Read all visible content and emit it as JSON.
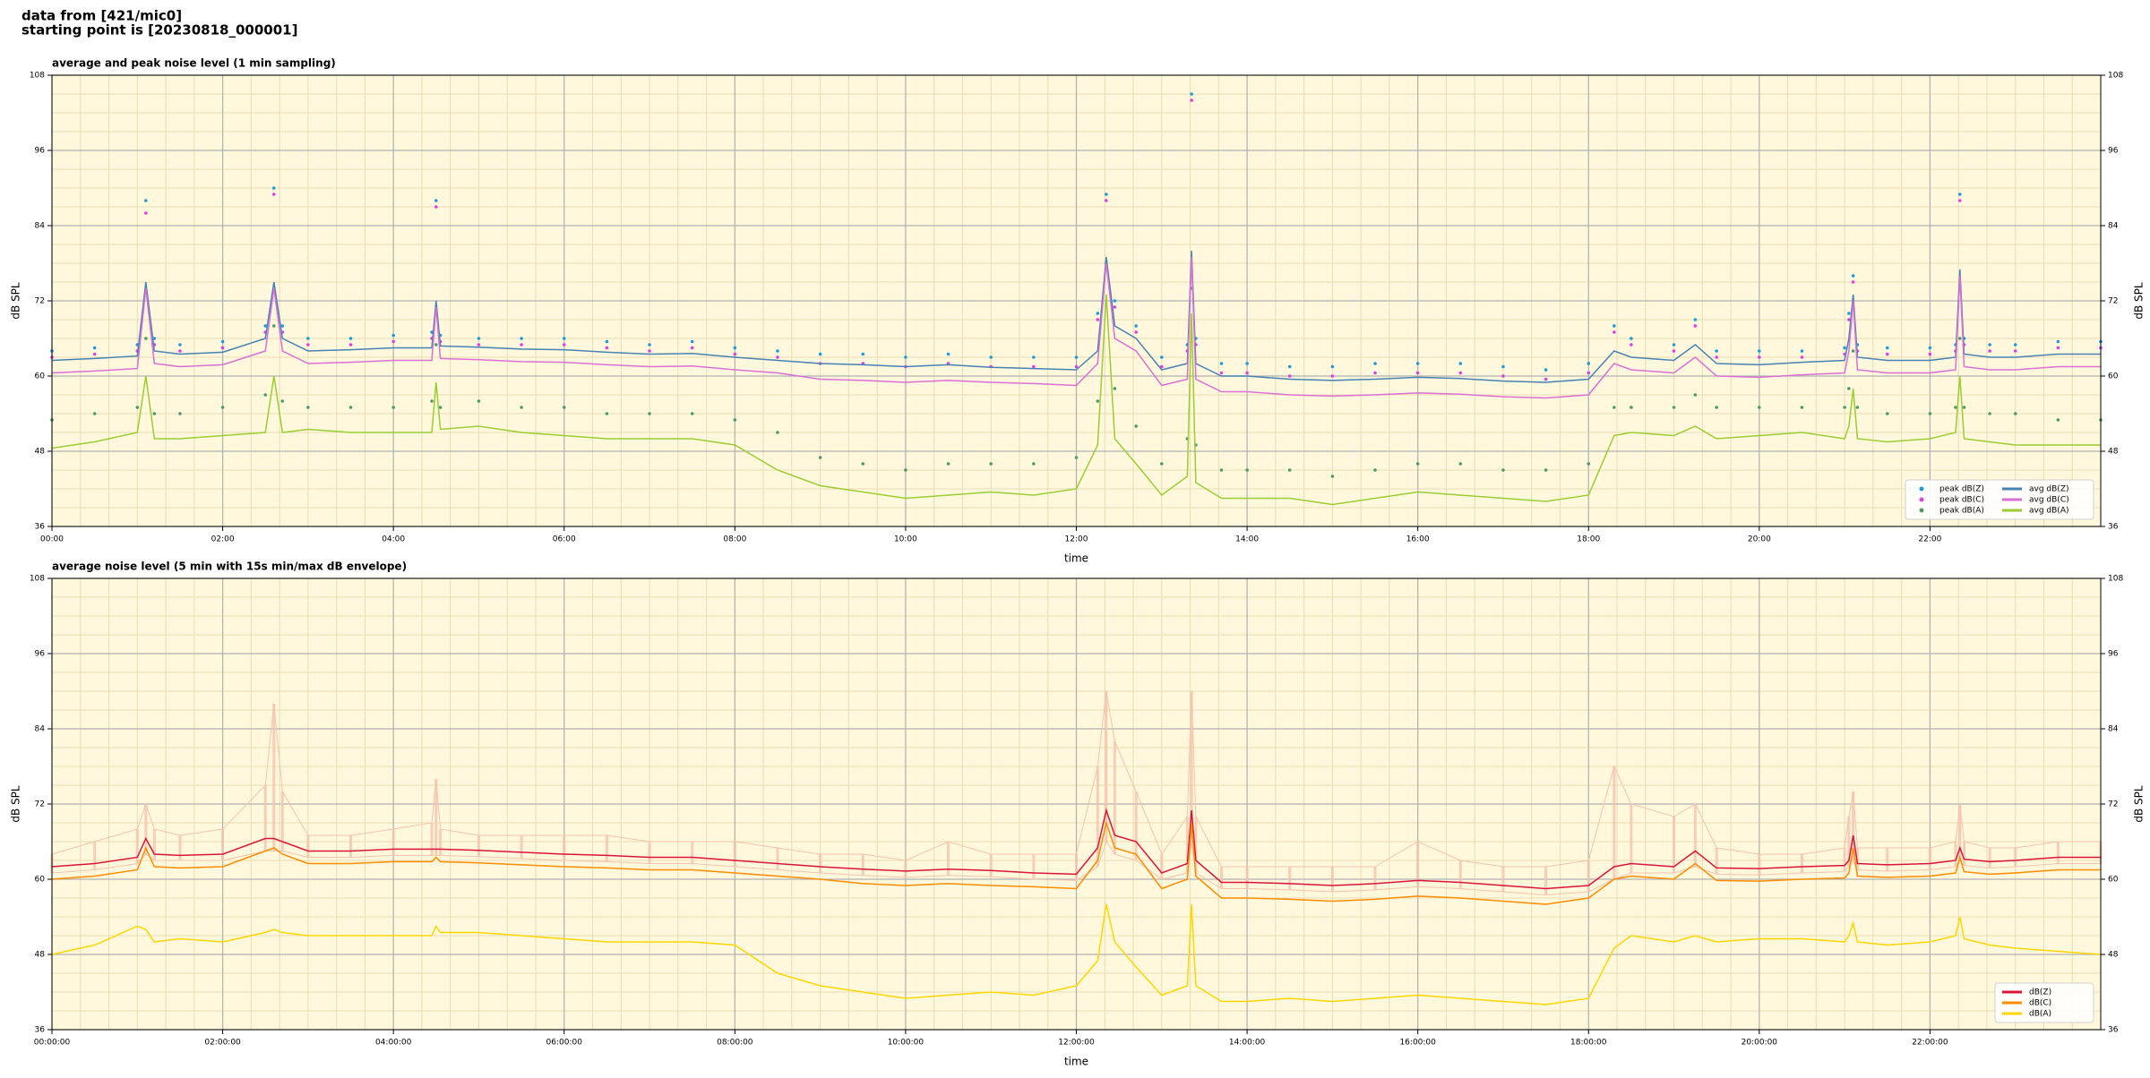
{
  "header": {
    "line1": "data from [421/mic0]",
    "line2": "starting point is [20230818_000001]"
  },
  "chart_data": [
    {
      "type": "line",
      "title": "average and peak noise level (1 min sampling)",
      "xlabel": "time",
      "ylabel": "dB SPL",
      "y2label": "dB SPL",
      "xlim": [
        0,
        24
      ],
      "ylim": [
        36,
        108
      ],
      "y2lim": [
        36,
        108
      ],
      "yticks": [
        36,
        48,
        60,
        72,
        84,
        96,
        108
      ],
      "y2ticks": [
        36,
        48,
        60,
        72,
        84,
        96,
        108
      ],
      "xticks": [
        {
          "value": 0,
          "label": "00:00"
        },
        {
          "value": 2,
          "label": "02:00"
        },
        {
          "value": 4,
          "label": "04:00"
        },
        {
          "value": 6,
          "label": "06:00"
        },
        {
          "value": 8,
          "label": "08:00"
        },
        {
          "value": 10,
          "label": "10:00"
        },
        {
          "value": 12,
          "label": "12:00"
        },
        {
          "value": 14,
          "label": "14:00"
        },
        {
          "value": 16,
          "label": "16:00"
        },
        {
          "value": 18,
          "label": "18:00"
        },
        {
          "value": 20,
          "label": "20:00"
        },
        {
          "value": 22,
          "label": "22:00"
        }
      ],
      "grid": true,
      "minor_grid": true,
      "background": "#fff8dc",
      "legend": "lower right",
      "legend_columns": 2,
      "x": [
        0,
        0.5,
        1,
        1.1,
        1.2,
        1.5,
        2,
        2.5,
        2.6,
        2.7,
        3,
        3.5,
        4,
        4.45,
        4.5,
        4.55,
        5,
        5.5,
        6,
        6.5,
        7,
        7.5,
        8,
        8.5,
        9,
        9.5,
        10,
        10.5,
        11,
        11.5,
        12,
        12.25,
        12.35,
        12.45,
        12.7,
        13,
        13.3,
        13.35,
        13.4,
        13.7,
        14,
        14.5,
        15,
        15.5,
        16,
        16.5,
        17,
        17.5,
        18,
        18.3,
        18.5,
        19,
        19.25,
        19.5,
        20,
        20.5,
        21,
        21.05,
        21.1,
        21.15,
        21.5,
        22,
        22.3,
        22.35,
        22.4,
        22.7,
        23,
        23.5,
        24
      ],
      "series": [
        {
          "name": "peak dB(Z)",
          "kind": "scatter",
          "color": "#1f9bd7",
          "values": [
            64,
            64.5,
            65,
            88,
            66,
            65,
            65.5,
            68,
            90,
            68,
            66,
            66,
            66.5,
            67,
            88,
            66.5,
            66,
            66,
            66,
            65.5,
            65,
            65.5,
            64.5,
            64,
            63.5,
            63.5,
            63,
            63.5,
            63,
            63,
            63,
            70,
            89,
            72,
            68,
            63,
            65,
            105,
            66,
            62,
            62,
            61.5,
            61.5,
            62,
            62,
            62,
            61.5,
            61,
            62,
            68,
            66,
            65,
            69,
            64,
            64,
            64,
            64.5,
            70,
            76,
            65,
            64.5,
            64.5,
            65,
            89,
            66,
            65,
            65,
            65.5,
            65.5
          ]
        },
        {
          "name": "peak dB(C)",
          "kind": "scatter",
          "color": "#e040e0",
          "values": [
            63,
            63.5,
            64,
            86,
            65,
            64,
            64.5,
            67,
            89,
            67,
            65,
            65,
            65.5,
            66,
            87,
            65.5,
            65,
            65,
            65,
            64.5,
            64,
            64.5,
            63.5,
            63,
            62,
            62,
            61.5,
            62,
            61.5,
            61.5,
            61.5,
            69,
            88,
            71,
            67,
            61.5,
            64,
            104,
            65,
            60.5,
            60.5,
            60,
            60,
            60.5,
            60.5,
            60.5,
            60,
            59.5,
            60.5,
            67,
            65,
            64,
            68,
            63,
            63,
            63,
            63.5,
            69,
            75,
            64,
            63.5,
            63.5,
            64,
            88,
            65,
            64,
            64,
            64.5,
            64.5
          ]
        },
        {
          "name": "peak dB(A)",
          "kind": "scatter",
          "color": "#4f9a6a",
          "values": [
            53,
            54,
            55,
            66,
            54,
            54,
            55,
            57,
            68,
            56,
            55,
            55,
            55,
            56,
            65,
            55,
            56,
            55,
            55,
            54,
            54,
            54,
            53,
            51,
            47,
            46,
            45,
            46,
            46,
            46,
            47,
            56,
            78,
            58,
            52,
            46,
            50,
            74,
            49,
            45,
            45,
            45,
            44,
            45,
            46,
            46,
            45,
            45,
            46,
            55,
            55,
            55,
            57,
            55,
            55,
            55,
            55,
            58,
            64,
            55,
            54,
            54,
            55,
            66,
            55,
            54,
            54,
            53,
            53
          ]
        },
        {
          "name": "avg dB(Z)",
          "kind": "line",
          "color": "#4682b4",
          "values": [
            62.5,
            62.8,
            63.2,
            75,
            64,
            63.5,
            63.8,
            66,
            75,
            66,
            64,
            64.2,
            64.5,
            64.5,
            72,
            64.8,
            64.6,
            64.3,
            64.2,
            63.8,
            63.5,
            63.6,
            63,
            62.5,
            62,
            61.8,
            61.5,
            61.8,
            61.4,
            61.2,
            61,
            64,
            79,
            68,
            66,
            61,
            62,
            80,
            62,
            60,
            60,
            59.5,
            59.3,
            59.5,
            59.8,
            59.6,
            59.2,
            59,
            59.5,
            64,
            63,
            62.5,
            65,
            62,
            61.8,
            62.2,
            62.5,
            66,
            73,
            63,
            62.5,
            62.5,
            63,
            77,
            63.5,
            63,
            63,
            63.5,
            63.5
          ]
        },
        {
          "name": "avg dB(C)",
          "kind": "line",
          "color": "#da70d6",
          "values": [
            60.5,
            60.8,
            61.2,
            74,
            62,
            61.5,
            61.8,
            64,
            74,
            64,
            62,
            62.2,
            62.5,
            62.5,
            71,
            62.8,
            62.6,
            62.3,
            62.2,
            61.8,
            61.5,
            61.6,
            61,
            60.5,
            59.5,
            59.3,
            59,
            59.3,
            59,
            58.8,
            58.5,
            62,
            78,
            66,
            64,
            58.5,
            59.5,
            79,
            59.5,
            57.5,
            57.5,
            57,
            56.8,
            57,
            57.3,
            57.1,
            56.7,
            56.5,
            57,
            62,
            61,
            60.5,
            63,
            60,
            59.8,
            60.2,
            60.5,
            64,
            72,
            61,
            60.5,
            60.5,
            61,
            76,
            61.5,
            61,
            61,
            61.5,
            61.5
          ]
        },
        {
          "name": "avg dB(A)",
          "kind": "line",
          "color": "#9acd32",
          "values": [
            48.5,
            49.5,
            51,
            60,
            50,
            50,
            50.5,
            51,
            60,
            51,
            51.5,
            51,
            51,
            51,
            59,
            51.5,
            52,
            51,
            50.5,
            50,
            50,
            50,
            49,
            45,
            42.5,
            41.5,
            40.5,
            41,
            41.5,
            41,
            42,
            49,
            73,
            50,
            46,
            41,
            44,
            70,
            43,
            40.5,
            40.5,
            40.5,
            39.5,
            40.5,
            41.5,
            41,
            40.5,
            40,
            41,
            50.5,
            51,
            50.5,
            52,
            50,
            50.5,
            51,
            50,
            52,
            58,
            50,
            49.5,
            50,
            51,
            60,
            50,
            49.5,
            49,
            49,
            49
          ]
        }
      ]
    },
    {
      "type": "line",
      "title": "average noise level (5 min with 15s min/max dB envelope)",
      "xlabel": "time",
      "ylabel": "dB SPL",
      "y2label": "dB SPL",
      "xlim": [
        0,
        24
      ],
      "ylim": [
        36,
        108
      ],
      "y2lim": [
        36,
        108
      ],
      "yticks": [
        36,
        48,
        60,
        72,
        84,
        96,
        108
      ],
      "y2ticks": [
        36,
        48,
        60,
        72,
        84,
        96,
        108
      ],
      "xticks": [
        {
          "value": 0,
          "label": "00:00:00"
        },
        {
          "value": 2,
          "label": "02:00:00"
        },
        {
          "value": 4,
          "label": "04:00:00"
        },
        {
          "value": 6,
          "label": "06:00:00"
        },
        {
          "value": 8,
          "label": "08:00:00"
        },
        {
          "value": 10,
          "label": "10:00:00"
        },
        {
          "value": 12,
          "label": "12:00:00"
        },
        {
          "value": 14,
          "label": "14:00:00"
        },
        {
          "value": 16,
          "label": "16:00:00"
        },
        {
          "value": 18,
          "label": "18:00:00"
        },
        {
          "value": 20,
          "label": "20:00:00"
        },
        {
          "value": 22,
          "label": "22:00:00"
        }
      ],
      "grid": true,
      "minor_grid": true,
      "background": "#fff8dc",
      "legend": "lower right",
      "legend_columns": 1,
      "x": [
        0,
        0.5,
        1,
        1.1,
        1.2,
        1.5,
        2,
        2.5,
        2.6,
        2.7,
        3,
        3.5,
        4,
        4.45,
        4.5,
        4.55,
        5,
        5.5,
        6,
        6.5,
        7,
        7.5,
        8,
        8.5,
        9,
        9.5,
        10,
        10.5,
        11,
        11.5,
        12,
        12.25,
        12.35,
        12.45,
        12.7,
        13,
        13.3,
        13.35,
        13.4,
        13.7,
        14,
        14.5,
        15,
        15.5,
        16,
        16.5,
        17,
        17.5,
        18,
        18.3,
        18.5,
        19,
        19.25,
        19.5,
        20,
        20.5,
        21,
        21.05,
        21.1,
        21.15,
        21.5,
        22,
        22.3,
        22.35,
        22.4,
        22.7,
        23,
        23.5,
        24
      ],
      "envelope": {
        "color": "#f4c4ae",
        "min": [
          61,
          61.5,
          62.5,
          64,
          63,
          63,
          63,
          64.5,
          64.5,
          64.5,
          63.5,
          63.5,
          63.8,
          63.8,
          63.8,
          63.8,
          63.6,
          63.3,
          63,
          62.8,
          62.5,
          62.5,
          62,
          61.5,
          61,
          60.6,
          60.3,
          60.6,
          60.4,
          60,
          59.8,
          62,
          66,
          64,
          63,
          60,
          61,
          66,
          61,
          58.5,
          58.5,
          58.3,
          58,
          58.3,
          58.8,
          58.5,
          58,
          57.5,
          58,
          60,
          61,
          61,
          62,
          60.8,
          60.7,
          61,
          61.2,
          62,
          63,
          61.5,
          61.3,
          61.5,
          62,
          63,
          62.2,
          61.8,
          62,
          62.5,
          62.5
        ],
        "max": [
          64,
          66,
          68,
          72,
          68,
          67,
          68,
          75,
          88,
          74,
          67,
          67,
          68,
          69,
          76,
          68,
          67,
          67,
          67,
          67,
          66,
          66,
          66,
          65,
          64,
          64,
          63,
          66,
          64,
          64,
          64,
          78,
          90,
          82,
          74,
          64,
          70,
          90,
          70,
          62,
          62,
          62,
          62,
          62,
          66,
          63,
          62,
          62,
          63,
          78,
          72,
          70,
          72,
          65,
          64,
          64,
          65,
          70,
          74,
          65,
          65,
          65,
          66,
          72,
          66,
          65,
          65,
          66,
          66
        ]
      },
      "series": [
        {
          "name": "dB(Z)",
          "kind": "line",
          "color": "#dc143c",
          "values": [
            62,
            62.5,
            63.5,
            66.5,
            64,
            63.8,
            64,
            66.5,
            66.5,
            66,
            64.5,
            64.5,
            64.8,
            64.8,
            64.8,
            64.8,
            64.6,
            64.3,
            64,
            63.8,
            63.5,
            63.5,
            63,
            62.5,
            62,
            61.6,
            61.3,
            61.6,
            61.4,
            61,
            60.8,
            65,
            71,
            67,
            66,
            61,
            62.5,
            71,
            63,
            59.5,
            59.5,
            59.3,
            59,
            59.3,
            59.8,
            59.5,
            59,
            58.5,
            59,
            62,
            62.5,
            62,
            64.5,
            61.8,
            61.7,
            62,
            62.2,
            63,
            67,
            62.5,
            62.3,
            62.5,
            63,
            65,
            63.2,
            62.8,
            63,
            63.5,
            63.5
          ]
        },
        {
          "name": "dB(C)",
          "kind": "line",
          "color": "#ff8c00",
          "values": [
            60,
            60.5,
            61.5,
            65,
            62,
            61.8,
            62,
            64.5,
            65,
            64,
            62.5,
            62.5,
            62.8,
            62.8,
            63.5,
            62.8,
            62.6,
            62.3,
            62,
            61.8,
            61.5,
            61.5,
            61,
            60.5,
            60,
            59.3,
            59,
            59.3,
            59,
            58.8,
            58.5,
            63,
            69,
            65,
            64,
            58.5,
            60,
            69,
            60.5,
            57,
            57,
            56.8,
            56.5,
            56.8,
            57.3,
            57,
            56.5,
            56,
            57,
            60,
            60.5,
            60,
            62.5,
            59.8,
            59.7,
            60,
            60.2,
            61,
            65,
            60.5,
            60.3,
            60.5,
            61,
            63.5,
            61.2,
            60.8,
            61,
            61.5,
            61.5
          ]
        },
        {
          "name": "dB(A)",
          "kind": "line",
          "color": "#ffd700",
          "values": [
            48,
            49.5,
            52.5,
            52,
            50,
            50.5,
            50,
            51.5,
            52,
            51.5,
            51,
            51,
            51,
            51,
            52.5,
            51.5,
            51.5,
            51,
            50.5,
            50,
            50,
            50,
            49.5,
            45,
            43,
            42,
            41,
            41.5,
            42,
            41.5,
            43,
            47,
            56,
            50,
            46,
            41.5,
            43,
            56,
            43,
            40.5,
            40.5,
            41,
            40.5,
            41,
            41.5,
            41,
            40.5,
            40,
            41,
            49,
            51,
            50,
            51,
            50,
            50.5,
            50.5,
            50,
            51,
            53,
            50,
            49.5,
            50,
            51,
            54,
            50.5,
            49.5,
            49,
            48.5,
            48
          ]
        }
      ]
    }
  ]
}
